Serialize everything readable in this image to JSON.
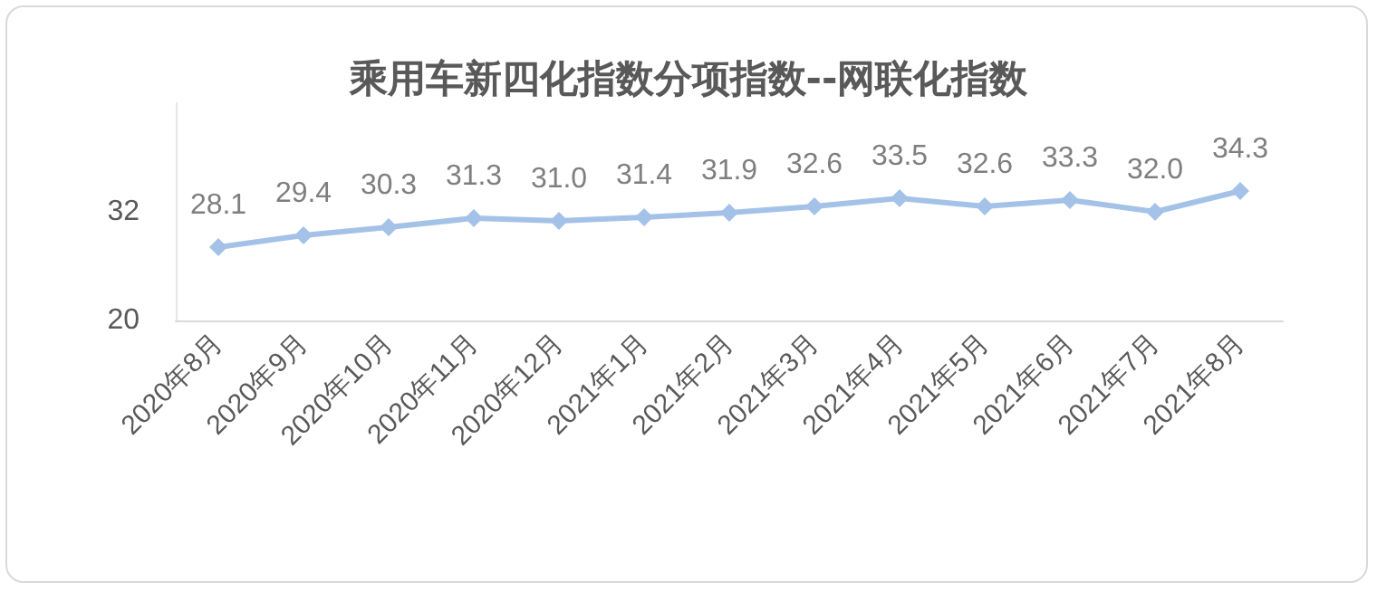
{
  "chart_data": {
    "type": "line",
    "title": "乘用车新四化指数分项指数--网联化指数",
    "categories": [
      "2020年8月",
      "2020年9月",
      "2020年10月",
      "2020年11月",
      "2020年12月",
      "2021年1月",
      "2021年2月",
      "2021年3月",
      "2021年4月",
      "2021年5月",
      "2021年6月",
      "2021年7月",
      "2021年8月"
    ],
    "series": [
      {
        "color": "#a4c2e8",
        "values": [
          28.1,
          29.4,
          30.3,
          31.3,
          31.0,
          31.4,
          31.9,
          32.6,
          33.5,
          32.6,
          33.3,
          32.0,
          34.3
        ]
      }
    ],
    "value_labels": [
      "28.1",
      "29.4",
      "30.3",
      "31.3",
      "31.0",
      "31.4",
      "31.9",
      "32.6",
      "33.5",
      "32.6",
      "33.3",
      "32.0",
      "34.3"
    ],
    "ylim": [
      20,
      44
    ],
    "yticks": [
      20,
      32
    ],
    "grid": false,
    "marker": "diamond",
    "line_style": "solid"
  }
}
